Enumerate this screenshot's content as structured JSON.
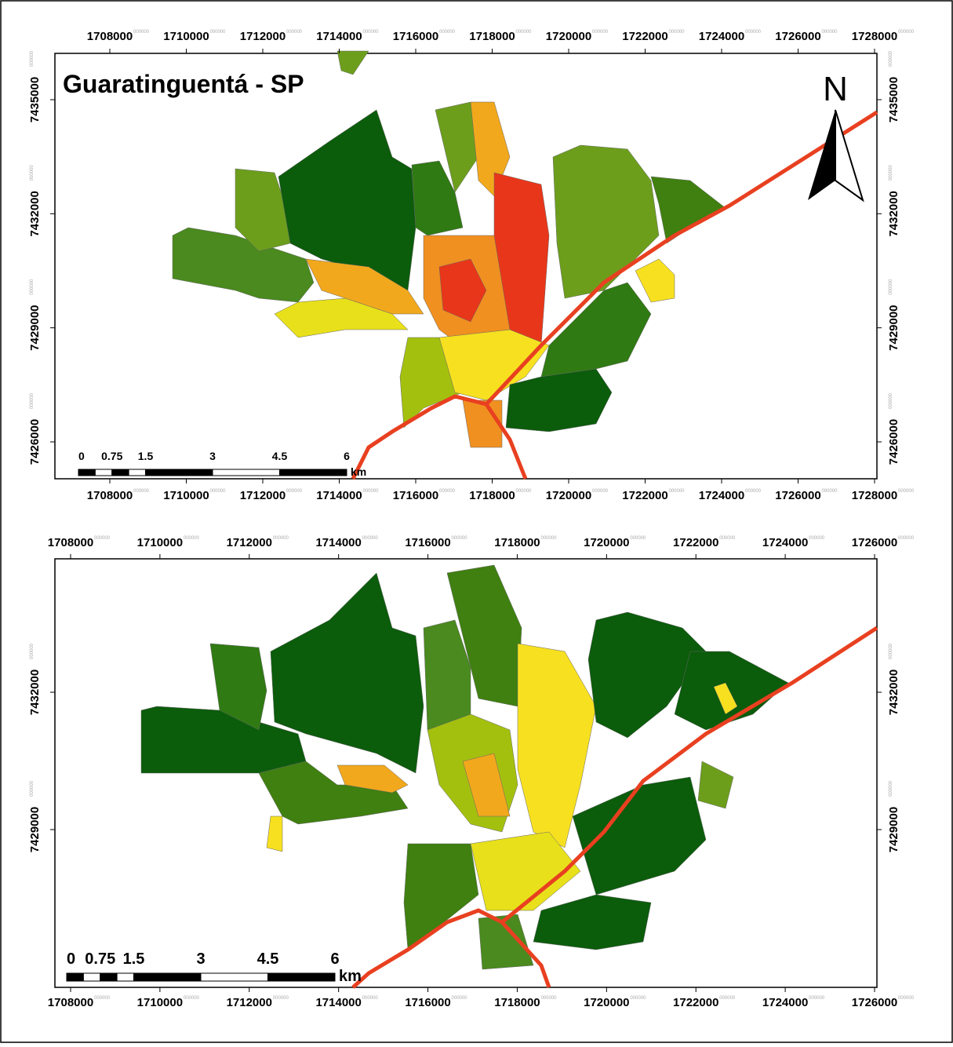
{
  "maps": [
    {
      "title": "Guaratinguentá - SP",
      "north": "N",
      "x_ticks": [
        1708000,
        1710000,
        1712000,
        1714000,
        1716000,
        1718000,
        1720000,
        1722000,
        1724000,
        1726000,
        1728000
      ],
      "y_ticks": [
        7426000,
        7429000,
        7432000,
        7435000
      ],
      "tick_suffix": "000000",
      "scale_labels": [
        "0",
        "0.75",
        "1.5",
        "3",
        "4.5",
        "6"
      ],
      "scale_unit": "km"
    },
    {
      "x_ticks": [
        1708000,
        1710000,
        1712000,
        1714000,
        1716000,
        1718000,
        1720000,
        1722000,
        1724000,
        1726000
      ],
      "y_ticks": [
        7429000,
        7432000
      ],
      "tick_suffix": "000000",
      "scale_labels": [
        "0",
        "0.75",
        "1.5",
        "3",
        "4.5",
        "6"
      ],
      "scale_unit": "km"
    }
  ]
}
